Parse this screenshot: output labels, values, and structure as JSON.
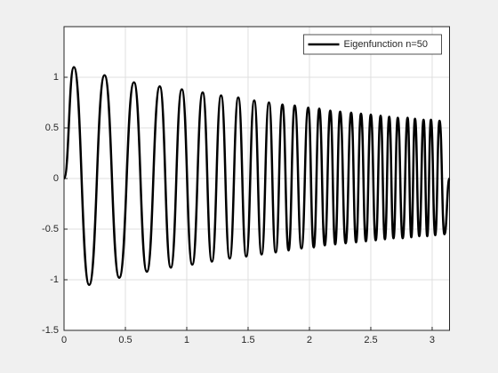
{
  "chart_data": {
    "type": "line",
    "x": [
      0,
      0.08,
      0.205,
      0.33,
      0.45,
      0.57,
      0.675,
      0.78,
      0.87,
      0.96,
      1.045,
      1.13,
      1.205,
      1.28,
      1.35,
      1.42,
      1.485,
      1.55,
      1.61,
      1.67,
      1.725,
      1.78,
      1.83,
      1.88,
      1.935,
      1.99,
      2.035,
      2.08,
      2.125,
      2.17,
      2.21,
      2.25,
      2.295,
      2.34,
      2.38,
      2.42,
      2.46,
      2.5,
      2.54,
      2.58,
      2.615,
      2.65,
      2.685,
      2.72,
      2.76,
      2.8,
      2.83,
      2.86,
      2.895,
      2.93,
      2.96,
      2.99,
      3.025,
      3.06,
      3.1,
      3.1416
    ],
    "series": [
      {
        "name": "Eigenfunction n=50",
        "color": "#000000",
        "values": [
          0,
          1.1,
          -1.05,
          1.02,
          -0.98,
          0.95,
          -0.92,
          0.91,
          -0.88,
          0.88,
          -0.85,
          0.85,
          -0.82,
          0.82,
          -0.79,
          0.8,
          -0.77,
          0.77,
          -0.75,
          0.75,
          -0.73,
          0.73,
          -0.71,
          0.72,
          -0.69,
          0.7,
          -0.68,
          0.69,
          -0.66,
          0.67,
          -0.65,
          0.66,
          -0.64,
          0.65,
          -0.63,
          0.64,
          -0.62,
          0.63,
          -0.61,
          0.62,
          -0.6,
          0.61,
          -0.59,
          0.6,
          -0.59,
          0.6,
          -0.58,
          0.59,
          -0.57,
          0.58,
          -0.57,
          0.58,
          -0.56,
          0.57,
          -0.55,
          0
        ]
      }
    ],
    "xlim": [
      0,
      3.1416
    ],
    "xticks": [
      0,
      0.5,
      1,
      1.5,
      2,
      2.5,
      3
    ],
    "ylim": [
      -1.5,
      1.5
    ],
    "yticks": [
      -1.5,
      -1,
      -0.5,
      0,
      0.5,
      1
    ],
    "grid": true,
    "legend": "northeast"
  }
}
